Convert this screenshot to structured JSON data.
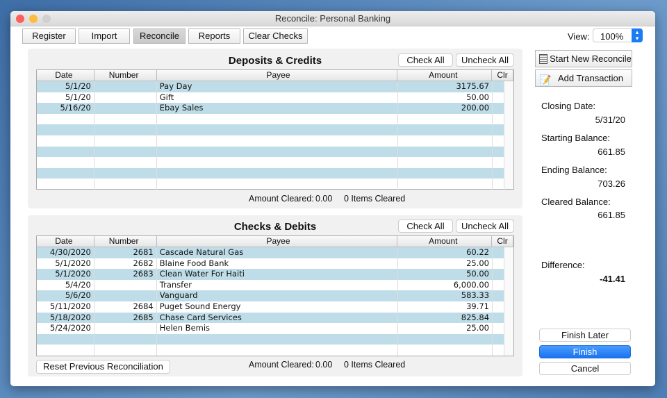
{
  "window": {
    "title": "Reconcile: Personal Banking"
  },
  "toolbar": {
    "buttons": [
      "Register",
      "Import",
      "Reconcile",
      "Reports",
      "Clear Checks"
    ],
    "selected": "Reconcile",
    "view_label": "View:",
    "view_value": "100%"
  },
  "columns": [
    "Date",
    "Number",
    "Payee",
    "Amount",
    "Clr"
  ],
  "deposits": {
    "title": "Deposits & Credits",
    "check_all": "Check All",
    "uncheck_all": "Uncheck All",
    "rows": [
      {
        "date": "5/1/20",
        "number": "",
        "payee": "Pay Day",
        "amount": "3175.67"
      },
      {
        "date": "5/1/20",
        "number": "",
        "payee": "Gift",
        "amount": "50.00"
      },
      {
        "date": "5/16/20",
        "number": "",
        "payee": "Ebay Sales",
        "amount": "200.00"
      }
    ],
    "amount_cleared_label": "Amount Cleared:",
    "amount_cleared": "0.00",
    "items_cleared": "0 Items Cleared"
  },
  "checks": {
    "title": "Checks & Debits",
    "check_all": "Check All",
    "uncheck_all": "Uncheck All",
    "rows": [
      {
        "date": "4/30/2020",
        "number": "2681",
        "payee": "Cascade Natural Gas",
        "amount": "60.22"
      },
      {
        "date": "5/1/2020",
        "number": "2682",
        "payee": "Blaine Food Bank",
        "amount": "25.00"
      },
      {
        "date": "5/1/2020",
        "number": "2683",
        "payee": "Clean Water For Haiti",
        "amount": "50.00"
      },
      {
        "date": "5/4/20",
        "number": "",
        "payee": "Transfer",
        "amount": "6,000.00"
      },
      {
        "date": "5/6/20",
        "number": "",
        "payee": "Vanguard",
        "amount": "583.33"
      },
      {
        "date": "5/11/2020",
        "number": "2684",
        "payee": "Puget Sound Energy",
        "amount": "39.71"
      },
      {
        "date": "5/18/2020",
        "number": "2685",
        "payee": "Chase Card Services",
        "amount": "825.84"
      },
      {
        "date": "5/24/2020",
        "number": "",
        "payee": "Helen Bemis",
        "amount": "25.00"
      }
    ],
    "amount_cleared_label": "Amount Cleared:",
    "amount_cleared": "0.00",
    "items_cleared": "0 Items Cleared",
    "reset": "Reset Previous Reconciliation"
  },
  "side": {
    "start_new": "Start New Reconcile",
    "add_transaction": "Add Transaction",
    "closing_date_label": "Closing Date:",
    "closing_date": "5/31/20",
    "starting_balance_label": "Starting Balance:",
    "starting_balance": "661.85",
    "ending_balance_label": "Ending Balance:",
    "ending_balance": "703.26",
    "cleared_balance_label": "Cleared Balance:",
    "cleared_balance": "661.85",
    "difference_label": "Difference:",
    "difference": "-41.41",
    "finish_later": "Finish Later",
    "finish": "Finish",
    "cancel": "Cancel"
  },
  "colors": {
    "row_alt": "#bfdde8",
    "accent": "#1a7cf5"
  }
}
